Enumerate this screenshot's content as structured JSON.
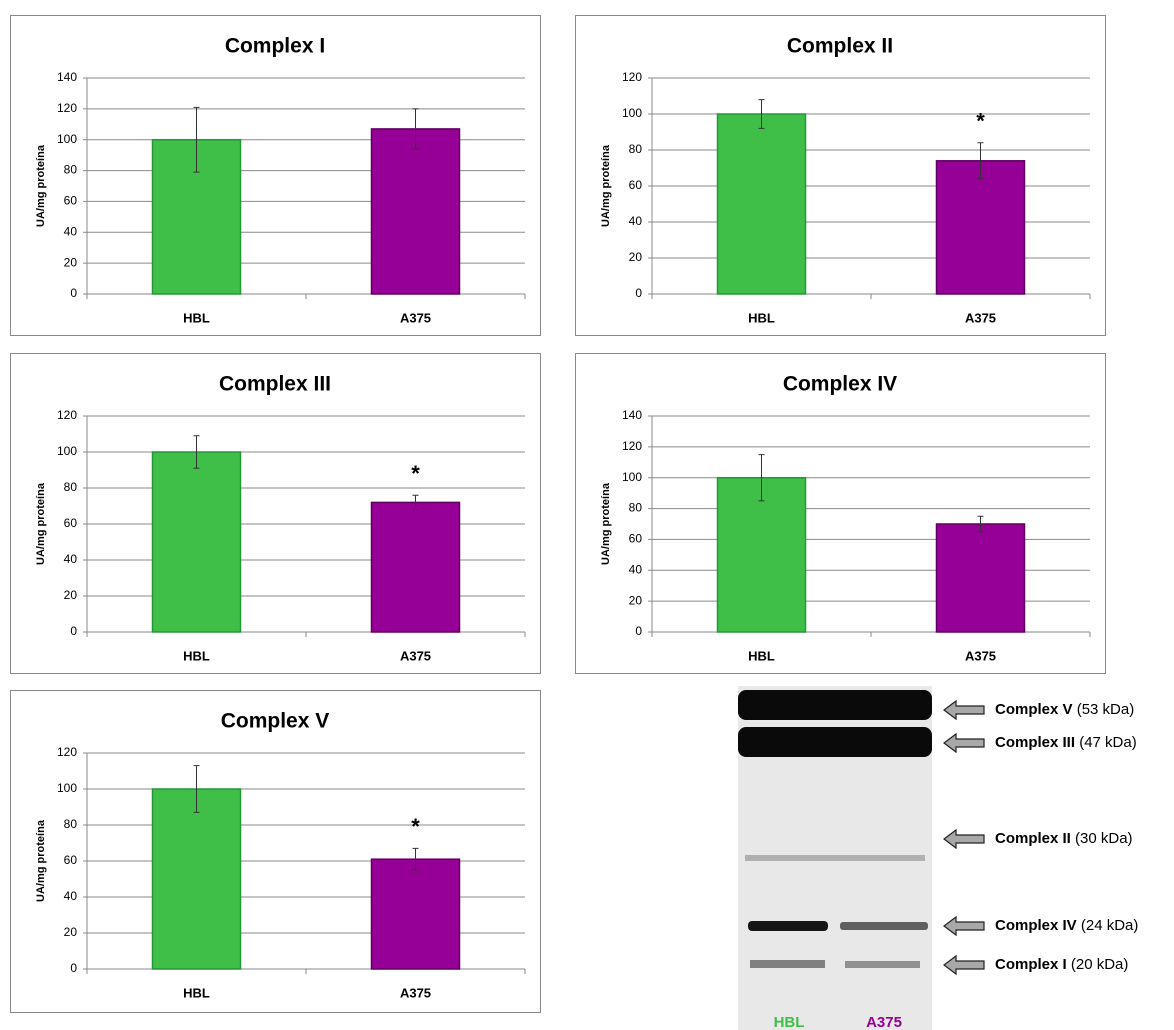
{
  "chart_data": [
    {
      "type": "bar",
      "title": "Complex I",
      "ylabel": "UA/mg proteína",
      "categories": [
        "HBL",
        "A375"
      ],
      "values": [
        100,
        107
      ],
      "errors": [
        21,
        13
      ],
      "colors": [
        "#3fbf48",
        "#960096"
      ],
      "significance": [
        null,
        null
      ],
      "ylim": [
        0,
        140
      ],
      "yticks": [
        0,
        20,
        40,
        60,
        80,
        100,
        120,
        140
      ],
      "grid": true
    },
    {
      "type": "bar",
      "title": "Complex II",
      "ylabel": "UA/mg proteína",
      "categories": [
        "HBL",
        "A375"
      ],
      "values": [
        100,
        74
      ],
      "errors": [
        8,
        10
      ],
      "colors": [
        "#3fbf48",
        "#960096"
      ],
      "significance": [
        null,
        "*"
      ],
      "ylim": [
        0,
        120
      ],
      "yticks": [
        0,
        20,
        40,
        60,
        80,
        100,
        120
      ],
      "grid": true
    },
    {
      "type": "bar",
      "title": "Complex III",
      "ylabel": "UA/mg proteína",
      "categories": [
        "HBL",
        "A375"
      ],
      "values": [
        100,
        72
      ],
      "errors": [
        9,
        4
      ],
      "colors": [
        "#3fbf48",
        "#960096"
      ],
      "significance": [
        null,
        "*"
      ],
      "ylim": [
        0,
        120
      ],
      "yticks": [
        0,
        20,
        40,
        60,
        80,
        100,
        120
      ],
      "grid": true
    },
    {
      "type": "bar",
      "title": "Complex IV",
      "ylabel": "UA/mg proteína",
      "categories": [
        "HBL",
        "A375"
      ],
      "values": [
        100,
        70
      ],
      "errors": [
        15,
        5
      ],
      "colors": [
        "#3fbf48",
        "#960096"
      ],
      "significance": [
        null,
        null
      ],
      "ylim": [
        0,
        140
      ],
      "yticks": [
        0,
        20,
        40,
        60,
        80,
        100,
        120,
        140
      ],
      "grid": true
    },
    {
      "type": "bar",
      "title": "Complex V",
      "ylabel": "UA/mg proteína",
      "categories": [
        "HBL",
        "A375"
      ],
      "values": [
        100,
        61
      ],
      "errors": [
        13,
        6
      ],
      "colors": [
        "#3fbf48",
        "#960096"
      ],
      "significance": [
        null,
        "*"
      ],
      "ylim": [
        0,
        120
      ],
      "yticks": [
        0,
        20,
        40,
        60,
        80,
        100,
        120
      ],
      "grid": true
    }
  ],
  "blot": {
    "lanes": [
      "HBL",
      "A375"
    ],
    "lane_colors": [
      "#3fbf48",
      "#960096"
    ],
    "bands": [
      {
        "name": "Complex V",
        "size": "(53 kDa)"
      },
      {
        "name": "Complex III",
        "size": "(47 kDa)"
      },
      {
        "name": "Complex II",
        "size": "(30 kDa)"
      },
      {
        "name": "Complex IV",
        "size": "(24 kDa)"
      },
      {
        "name": "Complex I",
        "size": "(20 kDa)"
      }
    ]
  }
}
